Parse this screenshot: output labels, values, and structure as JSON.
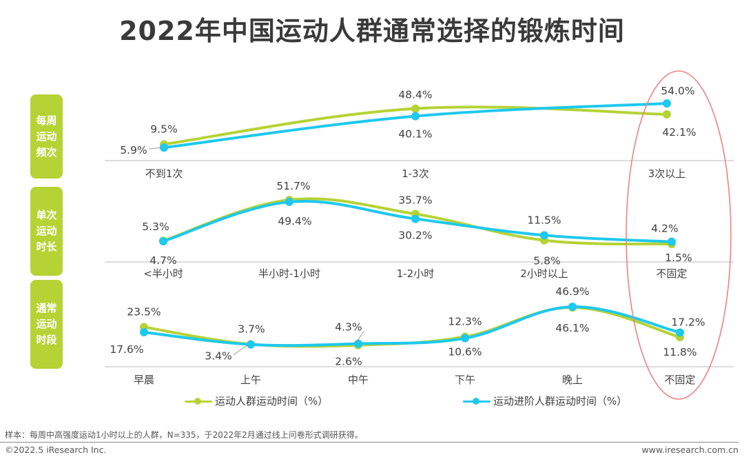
{
  "title": "2022年中国运动人群通常选择的锻炼时间",
  "colors": {
    "series_general": "#b5d334",
    "series_advanced": "#1ec8ee",
    "side_label_bg": "#b5d334",
    "highlight_ellipse": "#f08080",
    "axis_line": "#c8c8c8",
    "text": "#404040"
  },
  "chart_data": [
    {
      "type": "line",
      "section_label": "每周运动频次",
      "section_label_lines": [
        "每周",
        "运动",
        "频次"
      ],
      "categories": [
        "不到1次",
        "1-3次",
        "3次以上"
      ],
      "series": [
        {
          "name": "运动人群运动时间（%）",
          "values": [
            9.5,
            48.4,
            42.1
          ]
        },
        {
          "name": "运动进阶人群运动时间（%）",
          "values": [
            5.9,
            40.1,
            54.0
          ]
        }
      ],
      "value_labels": {
        "general": [
          "9.5%",
          "48.4%",
          "42.1%"
        ],
        "advanced": [
          "5.9%",
          "40.1%",
          "54.0%"
        ]
      },
      "ylim": [
        0,
        60
      ],
      "grid": false
    },
    {
      "type": "line",
      "section_label": "单次运动时长",
      "section_label_lines": [
        "单次",
        "运动",
        "时长"
      ],
      "categories": [
        "<半小时",
        "半小时-1小时",
        "1-2小时",
        "2小时以上",
        "不固定"
      ],
      "series": [
        {
          "name": "运动人群运动时间（%）",
          "values": [
            5.3,
            51.7,
            35.7,
            5.8,
            1.5
          ]
        },
        {
          "name": "运动进阶人群运动时间（%）",
          "values": [
            4.7,
            49.4,
            30.2,
            11.5,
            4.2
          ]
        }
      ],
      "value_labels": {
        "general": [
          "5.3%",
          "51.7%",
          "35.7%",
          "5.8%",
          "1.5%"
        ],
        "advanced": [
          "4.7%",
          "49.4%",
          "30.2%",
          "11.5%",
          "4.2%"
        ]
      },
      "ylim": [
        0,
        60
      ],
      "grid": false
    },
    {
      "type": "line",
      "section_label": "通常运动时段",
      "section_label_lines": [
        "通常",
        "运动",
        "时段"
      ],
      "categories": [
        "早晨",
        "上午",
        "中午",
        "下午",
        "晚上",
        "不固定"
      ],
      "series": [
        {
          "name": "运动人群运动时间（%）",
          "values": [
            23.5,
            3.7,
            2.6,
            12.3,
            46.1,
            11.8
          ]
        },
        {
          "name": "运动进阶人群运动时间（%）",
          "values": [
            17.6,
            3.4,
            4.3,
            10.6,
            46.9,
            17.2
          ]
        }
      ],
      "value_labels": {
        "general": [
          "23.5%",
          "3.7%",
          "2.6%",
          "12.3%",
          "46.1%",
          "11.8%"
        ],
        "advanced": [
          "17.6%",
          "3.4%",
          "4.3%",
          "10.6%",
          "46.9%",
          "17.2%"
        ]
      },
      "ylim": [
        0,
        60
      ],
      "grid": false
    }
  ],
  "highlight": {
    "category": "不固定 / 3次以上",
    "shape": "ellipse"
  },
  "legend": {
    "placement": "bottom",
    "items": [
      {
        "label": "运动人群运动时间（%）",
        "series": "general"
      },
      {
        "label": "运动进阶人群运动时间（%）",
        "series": "advanced"
      }
    ]
  },
  "footer": {
    "note": "样本：每周中高强度运动1小时以上的人群，N=335，于2022年2月通过线上问卷形式调研获得。",
    "copyright": "©2022.5 iResearch Inc.",
    "website": "www.iresearch.com.cn"
  }
}
